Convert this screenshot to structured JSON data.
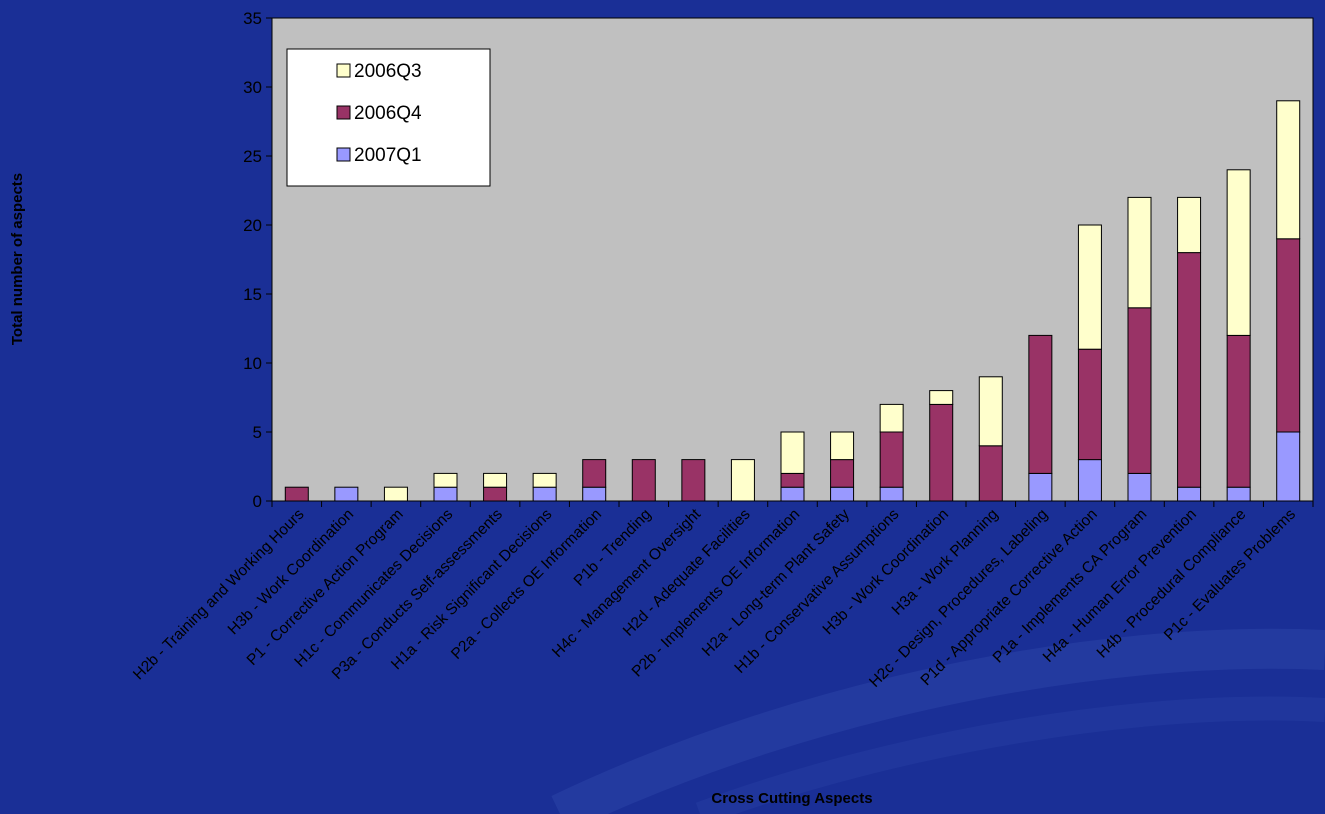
{
  "chart_data": {
    "type": "bar",
    "stacked": true,
    "title": "",
    "xlabel": "Cross Cutting Aspects",
    "ylabel": "Total number of aspects",
    "ylim": [
      0,
      35
    ],
    "yticks": [
      0,
      5,
      10,
      15,
      20,
      25,
      30,
      35
    ],
    "grid": false,
    "legend_position": "top-left",
    "categories": [
      "H2b - Training and Working Hours",
      "H3b - Work Coordination",
      "P1 - Corrective Action Program",
      "H1c - Communicates Decisions",
      "P3a - Conducts Self-assessments",
      "H1a - Risk Significant Decisions",
      "P2a - Collects OE Information",
      "P1b - Trending",
      "H4c - Management Oversight",
      "H2d - Adequate Facilities",
      "P2b - Implements OE Information",
      "H2a - Long-term Plant Safety",
      "H1b - Conservative Assumptions",
      "H3b - Work Coordination",
      "H3a - Work Planning",
      "H2c - Design, Procedures, Labeling",
      "P1d - Appropriate Corrective Action",
      "P1a - Implements CA Program",
      "H4a - Human Error Prevention",
      "H4b - Procedural Compliance",
      "P1c - Evaluates Problems"
    ],
    "series": [
      {
        "name": "2007Q1",
        "color": "#9999ff",
        "values": [
          0,
          1,
          0,
          1,
          0,
          1,
          1,
          0,
          0,
          0,
          1,
          1,
          1,
          0,
          0,
          2,
          3,
          2,
          1,
          1,
          5
        ]
      },
      {
        "name": "2006Q4",
        "color": "#993366",
        "values": [
          1,
          0,
          0,
          0,
          1,
          0,
          2,
          3,
          3,
          0,
          1,
          2,
          4,
          7,
          4,
          10,
          8,
          12,
          17,
          11,
          14
        ]
      },
      {
        "name": "2006Q3",
        "color": "#ffffcc",
        "values": [
          0,
          0,
          1,
          1,
          1,
          1,
          0,
          0,
          0,
          3,
          3,
          2,
          2,
          1,
          5,
          0,
          9,
          8,
          4,
          12,
          10
        ]
      }
    ],
    "legend_order": [
      "2006Q3",
      "2006Q4",
      "2007Q1"
    ],
    "colors": {
      "page_background": "#1a2f96",
      "plot_background": "#c0c0c0"
    }
  }
}
